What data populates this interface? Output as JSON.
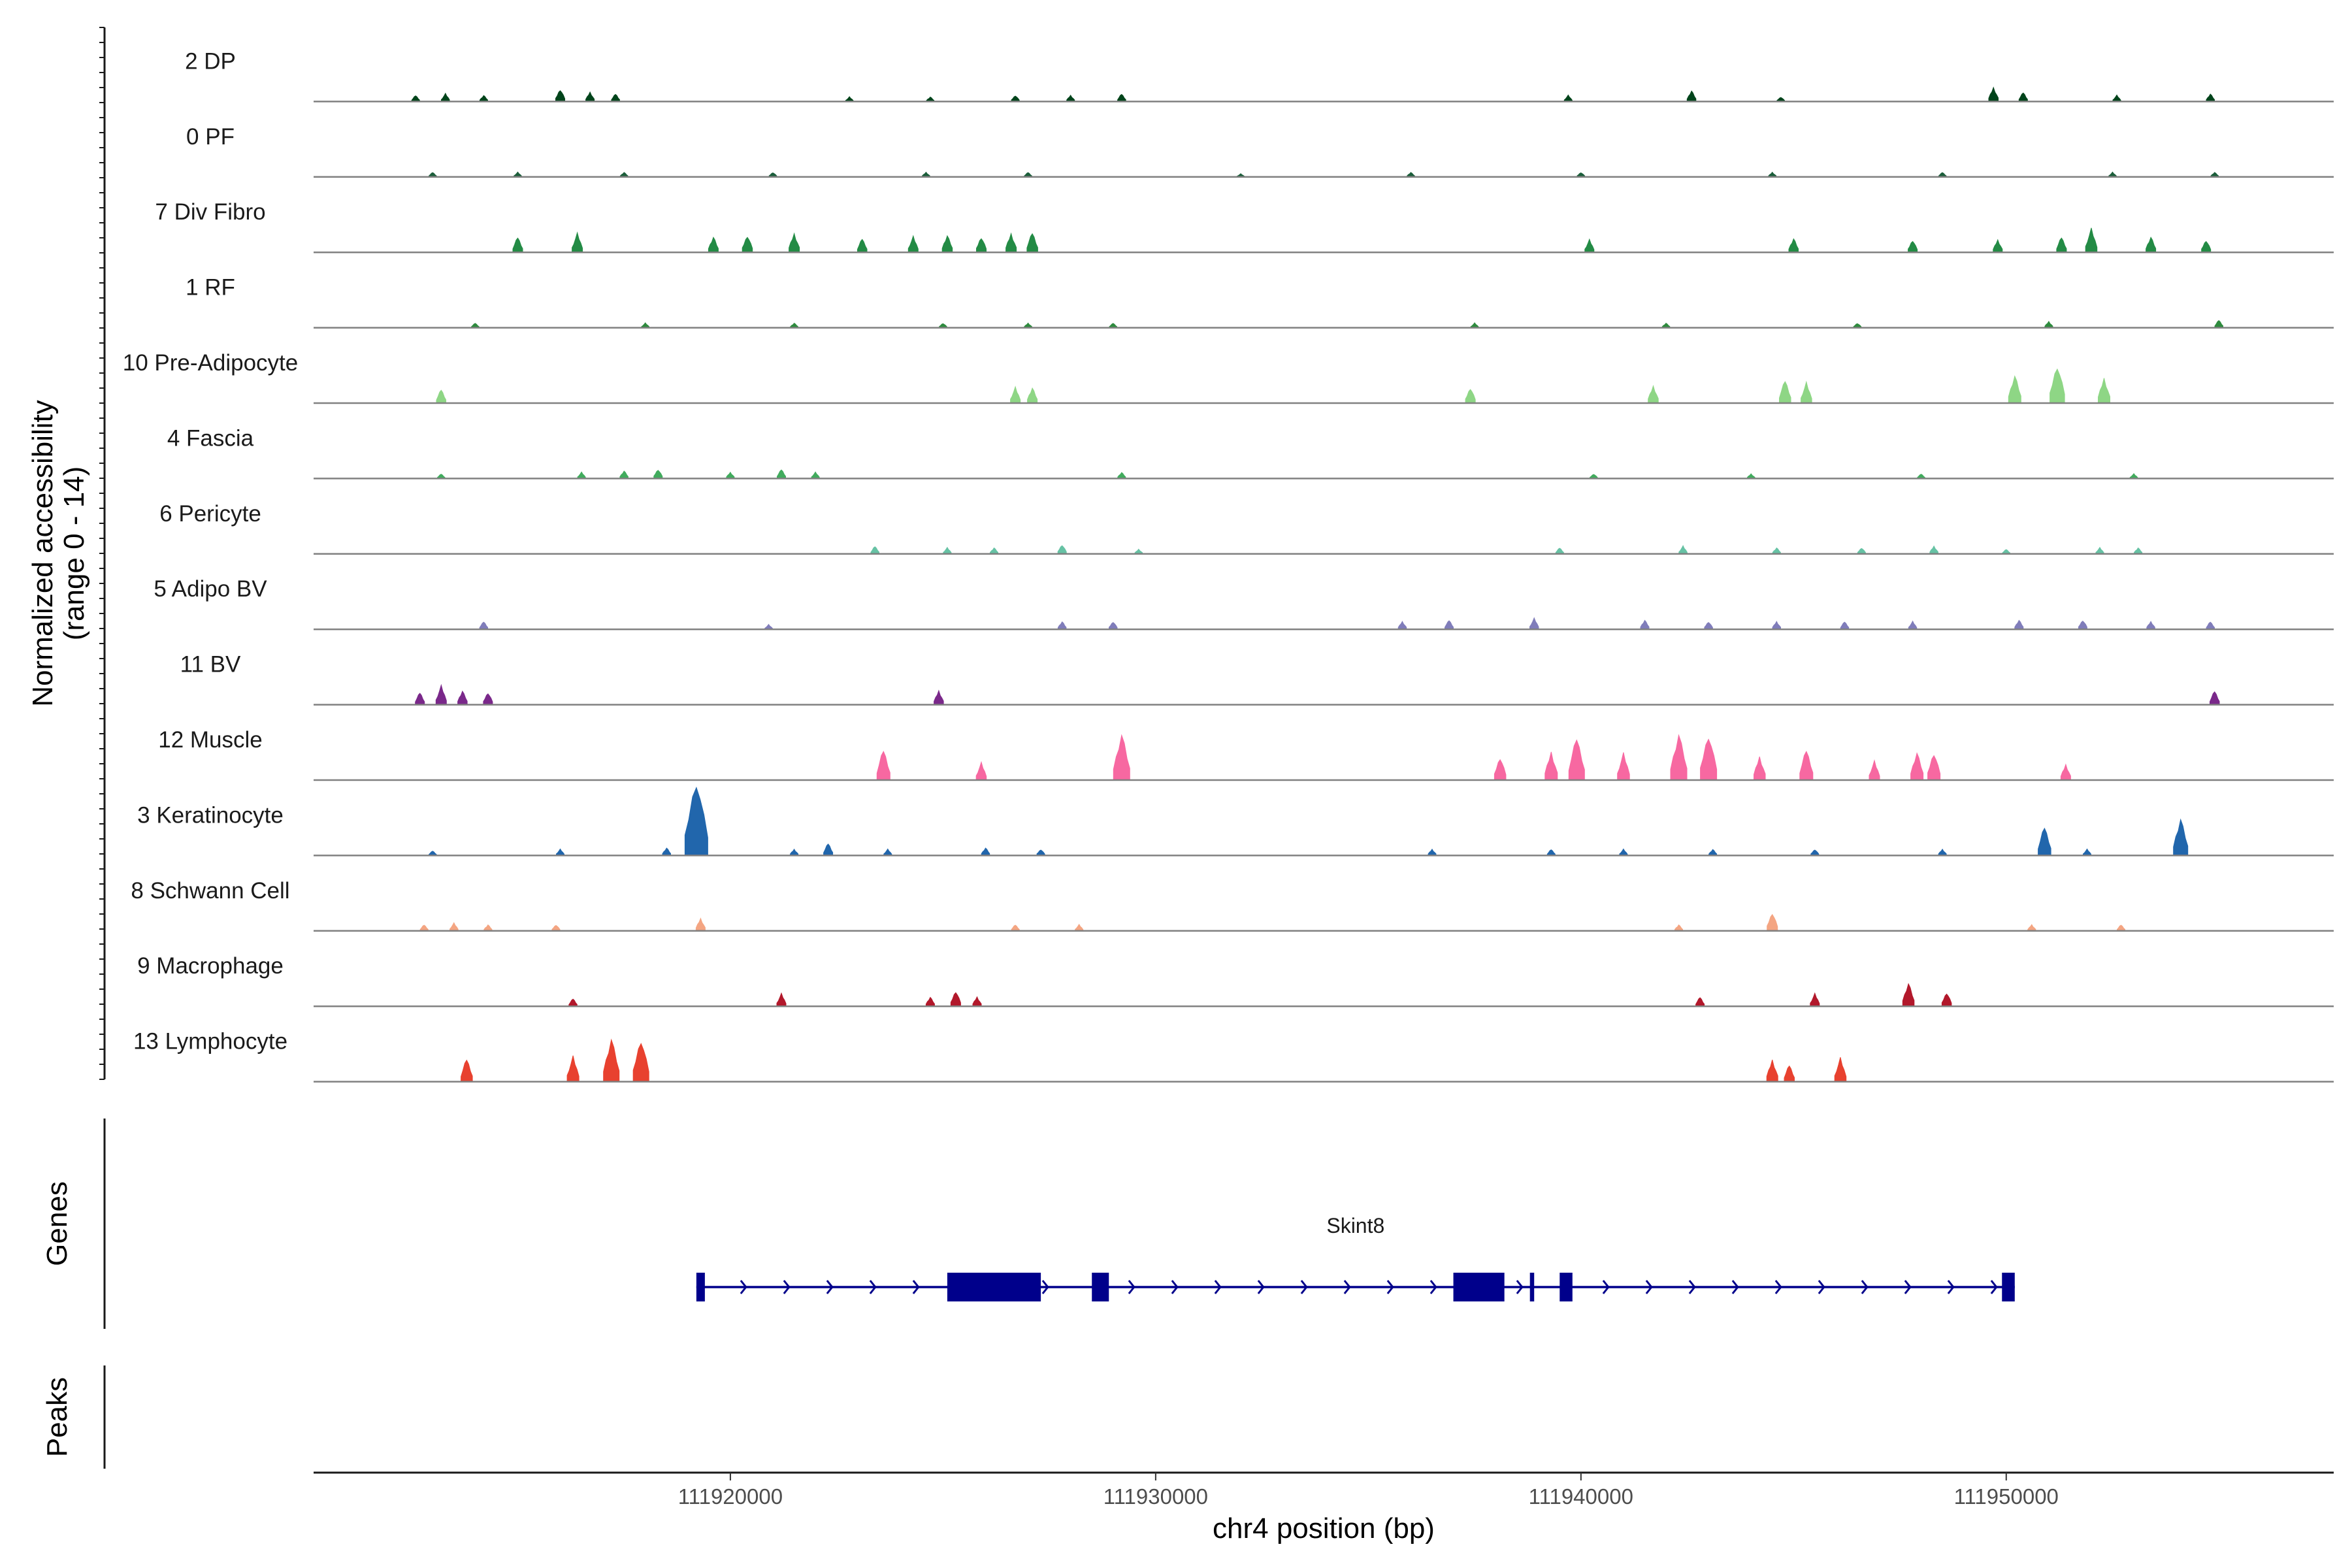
{
  "chart_data": {
    "type": "coverage",
    "ylabel": "Normalized accessibility",
    "ylabel_range": "(range 0 - 14)",
    "xlabel": "chr4 position (bp)",
    "xlim": [
      111910200,
      111957700
    ],
    "y_range": [
      0,
      14
    ],
    "x_ticks": [
      111920000,
      111930000,
      111940000,
      111950000
    ],
    "x_tick_labels": [
      "111920000",
      "111930000",
      "111940000",
      "111950000"
    ],
    "panel_labels": {
      "genes": "Genes",
      "peaks": "Peaks"
    },
    "tracks": [
      {
        "name": "2 DP",
        "color": "#00441B",
        "peaks": [
          [
            111912600,
            0.4
          ],
          [
            111913300,
            0.5
          ],
          [
            111914200,
            0.4
          ],
          [
            111916000,
            0.8
          ],
          [
            111916700,
            0.6
          ],
          [
            111917300,
            0.5
          ],
          [
            111922800,
            0.3
          ],
          [
            111924700,
            0.3
          ],
          [
            111926700,
            0.4
          ],
          [
            111928000,
            0.4
          ],
          [
            111929200,
            0.5
          ],
          [
            111939700,
            0.4
          ],
          [
            111942600,
            0.7
          ],
          [
            111944700,
            0.3
          ],
          [
            111949700,
            0.9
          ],
          [
            111950400,
            0.6
          ],
          [
            111952600,
            0.4
          ],
          [
            111954800,
            0.5
          ]
        ]
      },
      {
        "name": "0 PF",
        "color": "#1B5E3A",
        "peaks": [
          [
            111913000,
            0.3
          ],
          [
            111915000,
            0.3
          ],
          [
            111917500,
            0.3
          ],
          [
            111921000,
            0.3
          ],
          [
            111924600,
            0.3
          ],
          [
            111927000,
            0.3
          ],
          [
            111932000,
            0.2
          ],
          [
            111936000,
            0.3
          ],
          [
            111940000,
            0.3
          ],
          [
            111944500,
            0.3
          ],
          [
            111948500,
            0.3
          ],
          [
            111952500,
            0.3
          ],
          [
            111954900,
            0.3
          ]
        ]
      },
      {
        "name": "7 Div Fibro",
        "color": "#238B45",
        "peaks": [
          [
            111915000,
            1.0
          ],
          [
            111916400,
            1.2
          ],
          [
            111919600,
            1.0
          ],
          [
            111920400,
            1.1
          ],
          [
            111921500,
            1.2
          ],
          [
            111923100,
            0.9
          ],
          [
            111924300,
            1.0
          ],
          [
            111925100,
            1.1
          ],
          [
            111925900,
            1.0
          ],
          [
            111926600,
            1.2
          ],
          [
            111927100,
            1.3
          ],
          [
            111940200,
            0.8
          ],
          [
            111945000,
            0.9
          ],
          [
            111947800,
            0.8
          ],
          [
            111949800,
            0.8
          ],
          [
            111951300,
            1.0
          ],
          [
            111952000,
            1.5
          ],
          [
            111953400,
            1.0
          ],
          [
            111954700,
            0.8
          ]
        ]
      },
      {
        "name": "1 RF",
        "color": "#2E8B3E",
        "peaks": [
          [
            111914000,
            0.3
          ],
          [
            111918000,
            0.3
          ],
          [
            111921500,
            0.3
          ],
          [
            111925000,
            0.3
          ],
          [
            111927000,
            0.3
          ],
          [
            111929000,
            0.3
          ],
          [
            111937500,
            0.3
          ],
          [
            111942000,
            0.3
          ],
          [
            111946500,
            0.3
          ],
          [
            111951000,
            0.4
          ],
          [
            111955000,
            0.5
          ]
        ]
      },
      {
        "name": "10 Pre-Adipocyte",
        "color": "#8ED685",
        "peaks": [
          [
            111913200,
            0.9
          ],
          [
            111926700,
            1.0
          ],
          [
            111927100,
            1.0
          ],
          [
            111937400,
            1.0
          ],
          [
            111941700,
            1.1
          ],
          [
            111944800,
            1.5
          ],
          [
            111945300,
            1.3
          ],
          [
            111950200,
            1.8
          ],
          [
            111951200,
            2.5
          ],
          [
            111952300,
            1.6
          ]
        ]
      },
      {
        "name": "4 Fascia",
        "color": "#41AB5D",
        "peaks": [
          [
            111913200,
            0.3
          ],
          [
            111916500,
            0.4
          ],
          [
            111917500,
            0.5
          ],
          [
            111918300,
            0.6
          ],
          [
            111920000,
            0.4
          ],
          [
            111921200,
            0.6
          ],
          [
            111922000,
            0.4
          ],
          [
            111929200,
            0.4
          ],
          [
            111940300,
            0.3
          ],
          [
            111944000,
            0.3
          ],
          [
            111948000,
            0.3
          ],
          [
            111953000,
            0.3
          ]
        ]
      },
      {
        "name": "6 Pericyte",
        "color": "#66C2A4",
        "peaks": [
          [
            111923400,
            0.5
          ],
          [
            111925100,
            0.4
          ],
          [
            111926200,
            0.4
          ],
          [
            111927800,
            0.6
          ],
          [
            111929600,
            0.3
          ],
          [
            111939500,
            0.4
          ],
          [
            111942400,
            0.5
          ],
          [
            111944600,
            0.4
          ],
          [
            111946600,
            0.4
          ],
          [
            111948300,
            0.5
          ],
          [
            111950000,
            0.3
          ],
          [
            111952200,
            0.4
          ],
          [
            111953100,
            0.4
          ]
        ]
      },
      {
        "name": "5 Adipo BV",
        "color": "#807DBA",
        "peaks": [
          [
            111914200,
            0.5
          ],
          [
            111920900,
            0.3
          ],
          [
            111927800,
            0.5
          ],
          [
            111929000,
            0.5
          ],
          [
            111935800,
            0.5
          ],
          [
            111936900,
            0.6
          ],
          [
            111938900,
            0.7
          ],
          [
            111941500,
            0.6
          ],
          [
            111943000,
            0.5
          ],
          [
            111944600,
            0.5
          ],
          [
            111946200,
            0.5
          ],
          [
            111947800,
            0.5
          ],
          [
            111950300,
            0.6
          ],
          [
            111951800,
            0.6
          ],
          [
            111953400,
            0.5
          ],
          [
            111954800,
            0.5
          ]
        ]
      },
      {
        "name": "11 BV",
        "color": "#7A288A",
        "peaks": [
          [
            111912700,
            0.8
          ],
          [
            111913200,
            1.2
          ],
          [
            111913700,
            0.9
          ],
          [
            111914300,
            0.8
          ],
          [
            111924900,
            0.9
          ],
          [
            111954900,
            0.9
          ]
        ]
      },
      {
        "name": "12 Muscle",
        "color": "#F768A1",
        "peaks": [
          [
            111923600,
            2.0
          ],
          [
            111925900,
            1.1
          ],
          [
            111929200,
            3.0
          ],
          [
            111938100,
            1.5
          ],
          [
            111939300,
            1.8
          ],
          [
            111939900,
            2.8
          ],
          [
            111941000,
            1.7
          ],
          [
            111942300,
            3.0
          ],
          [
            111943000,
            3.0
          ],
          [
            111944200,
            1.5
          ],
          [
            111945300,
            2.0
          ],
          [
            111946900,
            1.2
          ],
          [
            111947900,
            1.8
          ],
          [
            111948300,
            1.8
          ],
          [
            111951400,
            1.0
          ]
        ]
      },
      {
        "name": "3 Keratinocyte",
        "color": "#2166AC",
        "peaks": [
          [
            111913000,
            0.3
          ],
          [
            111916000,
            0.4
          ],
          [
            111918500,
            0.5
          ],
          [
            111919200,
            5.0
          ],
          [
            111921500,
            0.4
          ],
          [
            111922300,
            0.8
          ],
          [
            111923700,
            0.4
          ],
          [
            111926000,
            0.5
          ],
          [
            111927300,
            0.4
          ],
          [
            111936500,
            0.4
          ],
          [
            111939300,
            0.4
          ],
          [
            111941000,
            0.4
          ],
          [
            111943100,
            0.4
          ],
          [
            111945500,
            0.4
          ],
          [
            111948500,
            0.4
          ],
          [
            111950900,
            1.9
          ],
          [
            111951900,
            0.4
          ],
          [
            111954100,
            2.4
          ]
        ]
      },
      {
        "name": "8 Schwann Cell",
        "color": "#F4A582",
        "peaks": [
          [
            111912800,
            0.4
          ],
          [
            111913500,
            0.5
          ],
          [
            111914300,
            0.4
          ],
          [
            111915900,
            0.4
          ],
          [
            111919300,
            0.8
          ],
          [
            111926700,
            0.4
          ],
          [
            111928200,
            0.4
          ],
          [
            111942300,
            0.4
          ],
          [
            111944500,
            1.2
          ],
          [
            111950600,
            0.4
          ],
          [
            111952700,
            0.4
          ]
        ]
      },
      {
        "name": "9 Macrophage",
        "color": "#B2182B",
        "peaks": [
          [
            111916300,
            0.5
          ],
          [
            111921200,
            0.8
          ],
          [
            111924700,
            0.6
          ],
          [
            111925300,
            1.0
          ],
          [
            111925800,
            0.6
          ],
          [
            111942800,
            0.6
          ],
          [
            111945500,
            0.8
          ],
          [
            111947700,
            1.5
          ],
          [
            111948600,
            0.9
          ]
        ]
      },
      {
        "name": "13 Lymphocyte",
        "color": "#E8412F",
        "peaks": [
          [
            111913800,
            1.5
          ],
          [
            111916300,
            1.6
          ],
          [
            111917200,
            2.8
          ],
          [
            111917900,
            2.8
          ],
          [
            111944500,
            1.4
          ],
          [
            111944900,
            1.1
          ],
          [
            111946100,
            1.5
          ]
        ]
      }
    ],
    "gene": {
      "name": "Skint8",
      "start": 111919200,
      "end": 111950200,
      "strand": "+",
      "color": "#00008B",
      "exons": [
        [
          111919200,
          111919400
        ],
        [
          111925100,
          111927300
        ],
        [
          111928500,
          111928900
        ],
        [
          111937000,
          111938200
        ],
        [
          111938800,
          111938900
        ],
        [
          111939500,
          111939800
        ],
        [
          111949900,
          111950200
        ]
      ]
    }
  }
}
